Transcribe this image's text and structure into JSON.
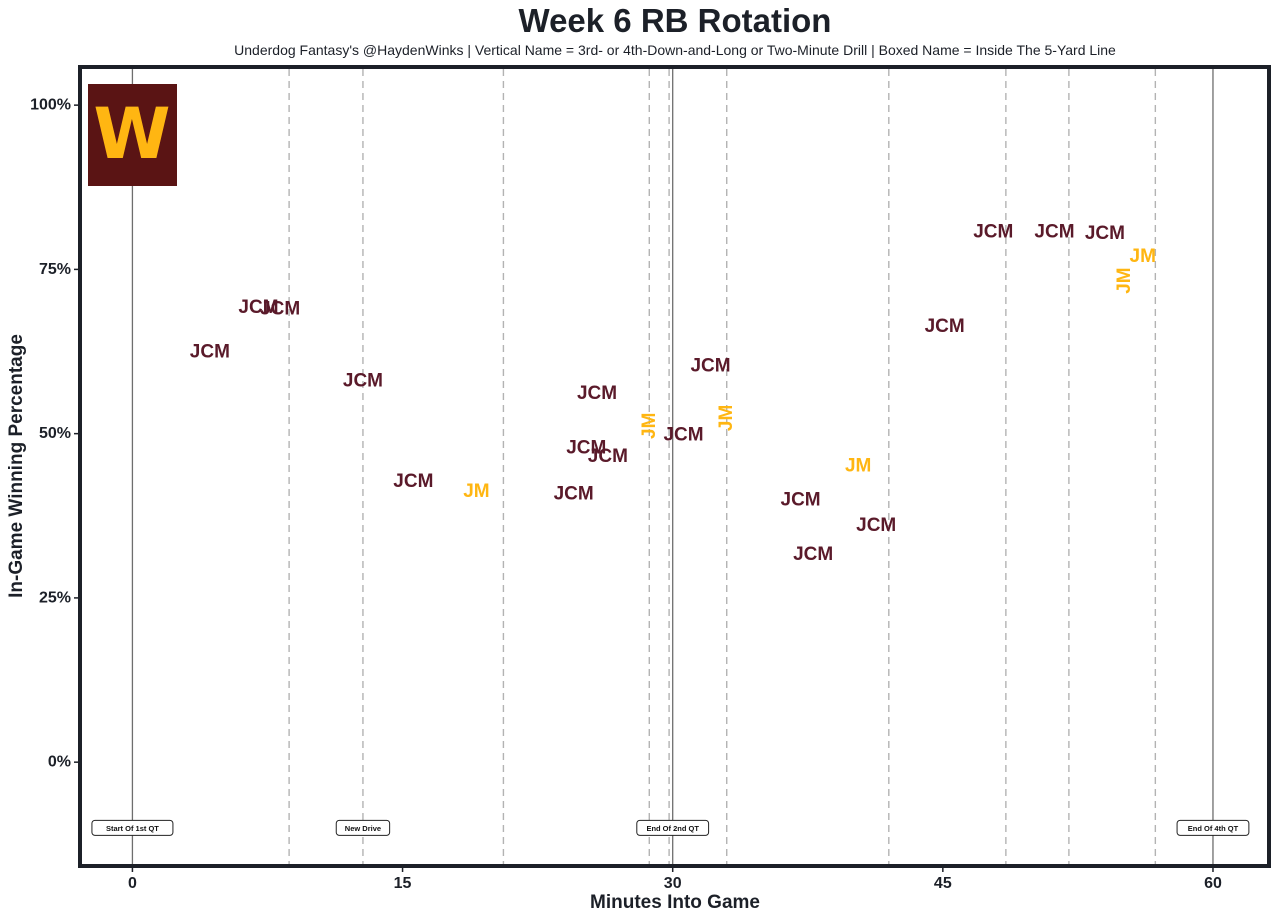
{
  "chart_data": {
    "type": "scatter",
    "title": "Week 6 RB Rotation",
    "subtitle": "Underdog Fantasy's @HaydenWinks | Vertical Name = 3rd- or 4th-Down-and-Long or Two-Minute Drill | Boxed Name = Inside The 5-Yard Line",
    "xlabel": "Minutes Into Game",
    "ylabel": "In-Game Winning Percentage",
    "xlim": [
      -2.8,
      63
    ],
    "ylim": [
      -15.5,
      105.5
    ],
    "x_ticks": [
      0,
      15,
      30,
      45,
      60
    ],
    "x_tick_labels": [
      "0",
      "15",
      "30",
      "45",
      "60"
    ],
    "y_ticks": [
      0,
      25,
      50,
      75,
      100
    ],
    "y_tick_labels": [
      "0%",
      "25%",
      "50%",
      "75%",
      "100%"
    ],
    "colors": {
      "JCM": "#5a1a2a",
      "JM": "#ffb612",
      "frame": "#1c2028",
      "logo_bg": "#5a1414",
      "logo_fg": "#ffb612"
    },
    "logo": {
      "letter": "W"
    },
    "solid_lines": [
      0,
      30,
      60
    ],
    "dashed_lines": [
      8.7,
      12.8,
      20.6,
      28.7,
      29.8,
      33.0,
      42.0,
      48.5,
      52.0,
      56.8
    ],
    "markers": [
      {
        "x": 0,
        "label": "Start Of 1st QT"
      },
      {
        "x": 12.8,
        "label": "New Drive"
      },
      {
        "x": 30,
        "label": "End Of 2nd QT"
      },
      {
        "x": 60,
        "label": "End Of 4th QT"
      }
    ],
    "marker_y": -10,
    "points": [
      {
        "x": 4.3,
        "y": 62.4,
        "label": "JCM",
        "player": "JCM",
        "vertical": false
      },
      {
        "x": 7.0,
        "y": 69.2,
        "label": "JCM",
        "player": "JCM",
        "vertical": false
      },
      {
        "x": 8.2,
        "y": 69.0,
        "label": "JCM",
        "player": "JCM",
        "vertical": false
      },
      {
        "x": 12.8,
        "y": 58.0,
        "label": "JCM",
        "player": "JCM",
        "vertical": false
      },
      {
        "x": 15.6,
        "y": 42.7,
        "label": "JCM",
        "player": "JCM",
        "vertical": false
      },
      {
        "x": 19.1,
        "y": 41.2,
        "label": "JM",
        "player": "JM",
        "vertical": false
      },
      {
        "x": 24.5,
        "y": 40.8,
        "label": "JCM",
        "player": "JCM",
        "vertical": false
      },
      {
        "x": 25.8,
        "y": 56.1,
        "label": "JCM",
        "player": "JCM",
        "vertical": false
      },
      {
        "x": 25.2,
        "y": 47.8,
        "label": "JCM",
        "player": "JCM",
        "vertical": false
      },
      {
        "x": 26.4,
        "y": 46.5,
        "label": "JCM",
        "player": "JCM",
        "vertical": false
      },
      {
        "x": 28.7,
        "y": 51.2,
        "label": "JM",
        "player": "JM",
        "vertical": true
      },
      {
        "x": 30.6,
        "y": 49.8,
        "label": "JCM",
        "player": "JCM",
        "vertical": false
      },
      {
        "x": 32.1,
        "y": 60.3,
        "label": "JCM",
        "player": "JCM",
        "vertical": false
      },
      {
        "x": 33.0,
        "y": 52.4,
        "label": "JM",
        "player": "JM",
        "vertical": true
      },
      {
        "x": 37.1,
        "y": 39.9,
        "label": "JCM",
        "player": "JCM",
        "vertical": false
      },
      {
        "x": 37.8,
        "y": 31.6,
        "label": "JCM",
        "player": "JCM",
        "vertical": false
      },
      {
        "x": 40.3,
        "y": 45.1,
        "label": "JM",
        "player": "JM",
        "vertical": false
      },
      {
        "x": 41.3,
        "y": 36.0,
        "label": "JCM",
        "player": "JCM",
        "vertical": false
      },
      {
        "x": 45.1,
        "y": 66.3,
        "label": "JCM",
        "player": "JCM",
        "vertical": false
      },
      {
        "x": 47.8,
        "y": 80.7,
        "label": "JCM",
        "player": "JCM",
        "vertical": false
      },
      {
        "x": 51.2,
        "y": 80.7,
        "label": "JCM",
        "player": "JCM",
        "vertical": false
      },
      {
        "x": 54.0,
        "y": 80.5,
        "label": "JCM",
        "player": "JCM",
        "vertical": false
      },
      {
        "x": 56.1,
        "y": 77.0,
        "label": "JM",
        "player": "JM",
        "vertical": false
      },
      {
        "x": 55.1,
        "y": 73.3,
        "label": "JM",
        "player": "JM",
        "vertical": true
      }
    ]
  }
}
